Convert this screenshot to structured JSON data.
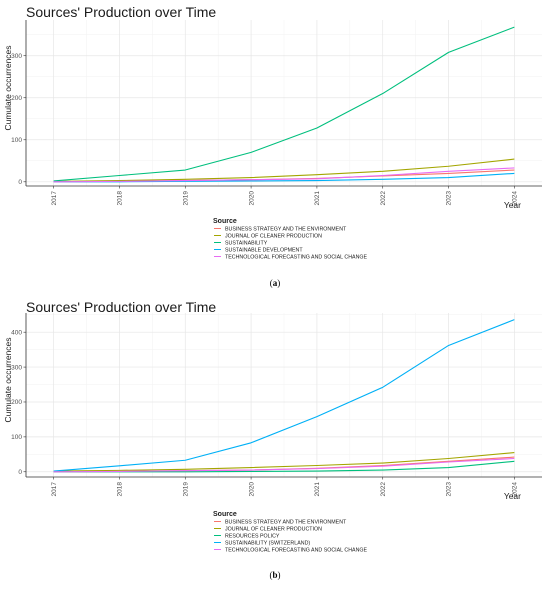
{
  "chart_data": [
    {
      "type": "line",
      "panel_caption": "a",
      "title": "Sources' Production over Time",
      "xlabel": "Year",
      "ylabel": "Cumulate occurrences",
      "x": [
        2017,
        2018,
        2019,
        2020,
        2021,
        2022,
        2023,
        2024
      ],
      "x_tick_labels": [
        "2017",
        "2018",
        "2019",
        "2020",
        "2021",
        "2022",
        "2023",
        "2024"
      ],
      "y_ticks": [
        0,
        100,
        200,
        300
      ],
      "ylim": [
        -10,
        385
      ],
      "grid": true,
      "legend_title": "Source",
      "legend_position": "bottom",
      "series": [
        {
          "name": "BUSINESS STRATEGY AND THE ENVIRONMENT",
          "color": "#F8766D",
          "values": [
            0,
            1,
            3,
            5,
            8,
            14,
            20,
            28
          ]
        },
        {
          "name": "JOURNAL OF CLEANER PRODUCTION",
          "color": "#A3A500",
          "values": [
            1,
            3,
            6,
            10,
            17,
            25,
            37,
            54
          ]
        },
        {
          "name": "SUSTAINABILITY",
          "color": "#00BF7D",
          "values": [
            2,
            15,
            28,
            70,
            128,
            210,
            308,
            368
          ]
        },
        {
          "name": "SUSTAINABLE DEVELOPMENT",
          "color": "#00B0F6",
          "values": [
            0,
            0,
            1,
            2,
            3,
            6,
            10,
            20
          ]
        },
        {
          "name": "TECHNOLOGICAL FORECASTING AND SOCIAL CHANGE",
          "color": "#E76BF3",
          "values": [
            0,
            1,
            3,
            5,
            7,
            15,
            25,
            33
          ]
        }
      ]
    },
    {
      "type": "line",
      "panel_caption": "b",
      "title": "Sources' Production over Time",
      "xlabel": "Year",
      "ylabel": "Cumulate occurrences",
      "x": [
        2017,
        2018,
        2019,
        2020,
        2021,
        2022,
        2023,
        2024
      ],
      "x_tick_labels": [
        "2017",
        "2018",
        "2019",
        "2020",
        "2021",
        "2022",
        "2023",
        "2024"
      ],
      "y_ticks": [
        0,
        100,
        200,
        300,
        400
      ],
      "ylim": [
        -15,
        455
      ],
      "grid": true,
      "legend_title": "Source",
      "legend_position": "bottom",
      "series": [
        {
          "name": "BUSINESS STRATEGY AND THE ENVIRONMENT",
          "color": "#F8766D",
          "values": [
            0,
            1,
            3,
            5,
            10,
            18,
            30,
            42
          ]
        },
        {
          "name": "JOURNAL OF CLEANER PRODUCTION",
          "color": "#A3A500",
          "values": [
            2,
            4,
            7,
            12,
            18,
            25,
            38,
            55
          ]
        },
        {
          "name": "RESOURCES POLICY",
          "color": "#00BF7D",
          "values": [
            0,
            0,
            0,
            1,
            2,
            5,
            12,
            30
          ]
        },
        {
          "name": "SUSTAINABILITY (SWITZERLAND)",
          "color": "#00B0F6",
          "values": [
            2,
            17,
            33,
            83,
            158,
            242,
            362,
            436
          ]
        },
        {
          "name": "TECHNOLOGICAL FORECASTING AND SOCIAL CHANGE",
          "color": "#E76BF3",
          "values": [
            0,
            1,
            3,
            5,
            9,
            16,
            28,
            38
          ]
        }
      ]
    }
  ]
}
